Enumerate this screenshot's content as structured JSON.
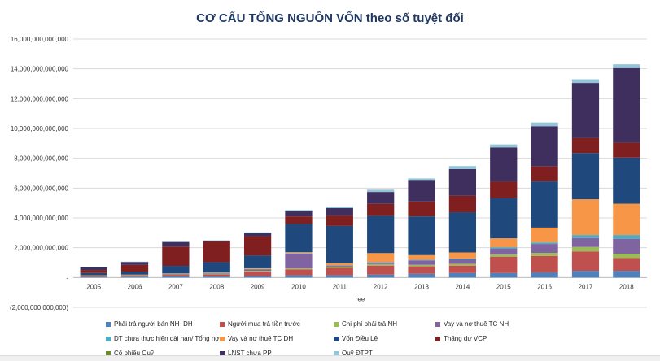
{
  "chart_data": {
    "type": "bar",
    "stacked": true,
    "title": "CƠ CẤU TỔNG NGUỒN VỐN theo số tuyệt đối",
    "xlabel": "ree",
    "ylabel": "",
    "ylim": [
      -2000000000000,
      16000000000000
    ],
    "y_ticks": [
      -2000000000000,
      0,
      2000000000000,
      4000000000000,
      6000000000000,
      8000000000000,
      10000000000000,
      12000000000000,
      14000000000000,
      16000000000000
    ],
    "y_tick_labels": [
      "(2,000,000,000,000)",
      "-",
      "2,000,000,000,000",
      "4,000,000,000,000",
      "6,000,000,000,000",
      "8,000,000,000,000",
      "10,000,000,000,000",
      "12,000,000,000,000",
      "14,000,000,000,000",
      "16,000,000,000,000"
    ],
    "grid": true,
    "legend_position": "bottom",
    "categories": [
      "2005",
      "2006",
      "2007",
      "2008",
      "2009",
      "2010",
      "2011",
      "2012",
      "2013",
      "2014",
      "2015",
      "2016",
      "2017",
      "2018"
    ],
    "series": [
      {
        "name": "Phải trả người bán NH+DH",
        "color": "#4f81bd",
        "values": [
          50000000000,
          60000000000,
          80000000000,
          70000000000,
          100000000000,
          150000000000,
          150000000000,
          200000000000,
          250000000000,
          300000000000,
          300000000000,
          350000000000,
          450000000000,
          450000000000
        ]
      },
      {
        "name": "Người mua trả tiền trước",
        "color": "#c0504d",
        "values": [
          60000000000,
          80000000000,
          100000000000,
          150000000000,
          300000000000,
          400000000000,
          500000000000,
          600000000000,
          500000000000,
          500000000000,
          1100000000000,
          1100000000000,
          1300000000000,
          850000000000
        ]
      },
      {
        "name": "Chi phí phải trả NH",
        "color": "#9bbb59",
        "values": [
          10000000000,
          10000000000,
          20000000000,
          30000000000,
          50000000000,
          60000000000,
          80000000000,
          100000000000,
          100000000000,
          120000000000,
          150000000000,
          200000000000,
          300000000000,
          300000000000
        ]
      },
      {
        "name": "Vay và nợ thuê TC NH",
        "color": "#8064a2",
        "values": [
          20000000000,
          30000000000,
          50000000000,
          40000000000,
          100000000000,
          1000000000000,
          50000000000,
          100000000000,
          300000000000,
          300000000000,
          400000000000,
          600000000000,
          600000000000,
          1000000000000
        ]
      },
      {
        "name": "DT chưa thực hiện dài hạn/ Tổng nợ",
        "color": "#4bacc6",
        "values": [
          5000000000,
          5000000000,
          10000000000,
          10000000000,
          20000000000,
          30000000000,
          30000000000,
          40000000000,
          50000000000,
          60000000000,
          80000000000,
          100000000000,
          200000000000,
          250000000000
        ]
      },
      {
        "name": "Vay và nợ thuê TC DH",
        "color": "#f79646",
        "values": [
          10000000000,
          10000000000,
          20000000000,
          30000000000,
          50000000000,
          60000000000,
          150000000000,
          600000000000,
          300000000000,
          400000000000,
          600000000000,
          1000000000000,
          2400000000000,
          2100000000000
        ]
      },
      {
        "name": "Vốn Điều Lệ",
        "color": "#1f497d",
        "values": [
          150000000000,
          200000000000,
          500000000000,
          700000000000,
          850000000000,
          1900000000000,
          2500000000000,
          2500000000000,
          2600000000000,
          2700000000000,
          2700000000000,
          3100000000000,
          3100000000000,
          3100000000000
        ]
      },
      {
        "name": "Thặng dư VCP",
        "color": "#7f1f1f",
        "values": [
          200000000000,
          450000000000,
          1300000000000,
          1400000000000,
          1300000000000,
          500000000000,
          700000000000,
          800000000000,
          1000000000000,
          1100000000000,
          1100000000000,
          1000000000000,
          1000000000000,
          1000000000000
        ]
      },
      {
        "name": "Cổ phiếu Quỹ",
        "color": "#6a8c2e",
        "values": [
          0,
          0,
          0,
          0,
          0,
          0,
          0,
          0,
          0,
          0,
          0,
          0,
          0,
          0
        ]
      },
      {
        "name": "LNST chưa PP",
        "color": "#3f2f5e",
        "values": [
          180000000000,
          200000000000,
          300000000000,
          30000000000,
          200000000000,
          350000000000,
          500000000000,
          800000000000,
          1400000000000,
          1800000000000,
          2300000000000,
          2700000000000,
          3700000000000,
          5000000000000
        ]
      },
      {
        "name": "Quỹ ĐTPT",
        "color": "#93c4d8",
        "values": [
          15000000000,
          20000000000,
          30000000000,
          40000000000,
          60000000000,
          80000000000,
          100000000000,
          150000000000,
          150000000000,
          200000000000,
          200000000000,
          250000000000,
          250000000000,
          250000000000
        ]
      }
    ]
  }
}
